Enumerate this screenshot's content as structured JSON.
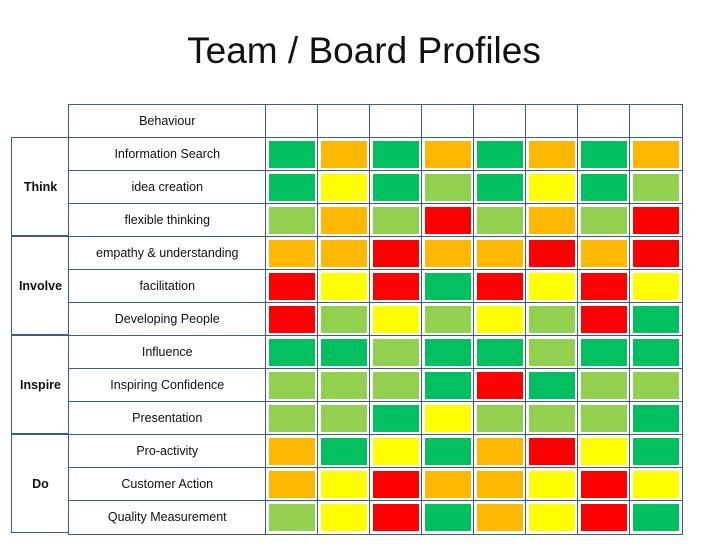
{
  "title": "Team / Board Profiles",
  "colors": {
    "G": "#00c060",
    "O": "#ffb800",
    "Y": "#ffff00",
    "L": "#92d050",
    "R": "#ff0000"
  },
  "table": {
    "header_label": "Behaviour",
    "columns": 8,
    "groups": [
      {
        "name": "Think",
        "rows": [
          {
            "label": "Information Search",
            "cells": [
              "G",
              "O",
              "G",
              "O",
              "G",
              "O",
              "G",
              "O"
            ]
          },
          {
            "label": "idea creation",
            "cells": [
              "G",
              "Y",
              "G",
              "L",
              "G",
              "Y",
              "G",
              "L"
            ]
          },
          {
            "label": "flexible thinking",
            "cells": [
              "L",
              "O",
              "L",
              "R",
              "L",
              "O",
              "L",
              "R"
            ]
          }
        ]
      },
      {
        "name": "Involve",
        "rows": [
          {
            "label": "empathy & understanding",
            "cells": [
              "O",
              "O",
              "R",
              "O",
              "O",
              "R",
              "O",
              "R"
            ]
          },
          {
            "label": "facilitation",
            "cells": [
              "R",
              "Y",
              "R",
              "G",
              "R",
              "Y",
              "R",
              "Y"
            ]
          },
          {
            "label": "Developing People",
            "cells": [
              "R",
              "L",
              "Y",
              "L",
              "Y",
              "L",
              "R",
              "G"
            ]
          }
        ]
      },
      {
        "name": "Inspire",
        "rows": [
          {
            "label": "Influence",
            "cells": [
              "G",
              "G",
              "L",
              "G",
              "G",
              "L",
              "G",
              "G"
            ]
          },
          {
            "label": "Inspiring Confidence",
            "cells": [
              "L",
              "L",
              "L",
              "G",
              "R",
              "G",
              "L",
              "L"
            ]
          },
          {
            "label": "Presentation",
            "cells": [
              "L",
              "L",
              "G",
              "Y",
              "L",
              "L",
              "L",
              "G"
            ]
          }
        ]
      },
      {
        "name": "Do",
        "rows": [
          {
            "label": "Pro-activity",
            "cells": [
              "O",
              "G",
              "Y",
              "G",
              "O",
              "R",
              "Y",
              "G"
            ]
          },
          {
            "label": "Customer Action",
            "cells": [
              "O",
              "Y",
              "R",
              "O",
              "O",
              "Y",
              "R",
              "Y"
            ]
          },
          {
            "label": "Quality Measurement",
            "cells": [
              "L",
              "Y",
              "R",
              "G",
              "O",
              "Y",
              "R",
              "G"
            ]
          }
        ]
      }
    ]
  }
}
